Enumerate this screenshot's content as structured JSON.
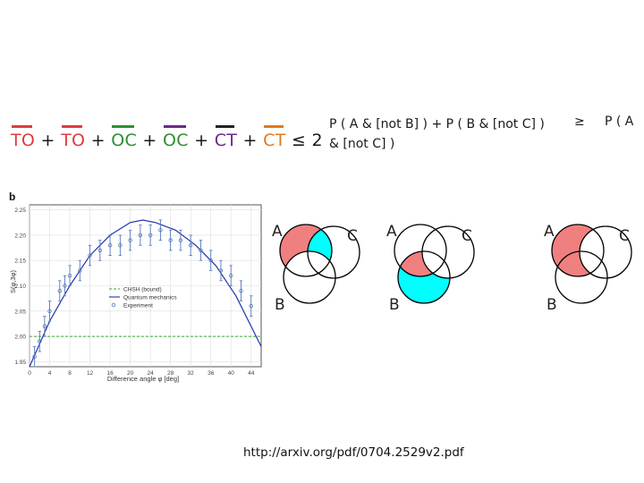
{
  "slide": {
    "inequality": {
      "terms": [
        {
          "text": "TO",
          "bar_color": "#e03c3c",
          "color": "#e03c3c"
        },
        {
          "text": "TO",
          "bar_color": "#e03c3c",
          "color": "#e03c3c"
        },
        {
          "text": "OC",
          "bar_color": "#2f8f2f",
          "color": "#2f8f2f"
        },
        {
          "text": "OC",
          "bar_color": "#6a2a8a",
          "color": "#2f8f2f"
        },
        {
          "text": "CT",
          "bar_color": "#222222",
          "color": "#6a2a8a"
        },
        {
          "text": "CT",
          "bar_color": "#e07a1a",
          "color": "#e07a1a"
        }
      ],
      "plus": "+",
      "rhs": "≤ 2"
    },
    "probability_text": "P ( A & [not B] )  +  P ( B & [not C] )  & [not C] )",
    "probability_line1": "P ( A & [not B] )  +  P ( B & [not C] )",
    "probability_line2": "& [not C] )",
    "geq": "≥",
    "rhs_prob": "P ( A",
    "url": "http://arxiv.org/pdf/0704.2529v2.pdf",
    "venn_labels": {
      "a": "A",
      "b": "B",
      "c": "C"
    },
    "colors": {
      "red_region": "#f08080",
      "cyan_region": "#00ffff"
    }
  },
  "chart_data": {
    "type": "line",
    "panel_label": "b",
    "xlabel": "Difference angle φ [deg]",
    "ylabel": "S(φ,3φ)",
    "xticks": [
      0,
      4,
      8,
      12,
      16,
      20,
      24,
      28,
      32,
      36,
      40,
      44
    ],
    "yticks": [
      1.95,
      2.0,
      2.05,
      2.1,
      2.15,
      2.2,
      2.25
    ],
    "xlim": [
      0,
      46
    ],
    "ylim": [
      1.94,
      2.26
    ],
    "legend": {
      "placement": "bottom-center",
      "entries": [
        "CHSH (bound)",
        "Quantum mechanics",
        "Experiment"
      ]
    },
    "series": [
      {
        "name": "CHSH (bound)",
        "style": "dashed",
        "color": "#33aa33",
        "x": [
          0,
          46
        ],
        "y": [
          2.0,
          2.0
        ]
      },
      {
        "name": "Quantum mechanics",
        "style": "solid",
        "color": "#2233aa",
        "x": [
          0,
          4,
          8,
          12,
          16,
          20,
          22.5,
          25,
          29,
          33,
          37,
          41,
          46
        ],
        "y": [
          1.94,
          2.03,
          2.1,
          2.16,
          2.2,
          2.225,
          2.23,
          2.225,
          2.21,
          2.18,
          2.14,
          2.08,
          1.98
        ]
      },
      {
        "name": "Experiment",
        "style": "points",
        "color": "#5577bb",
        "x": [
          1,
          2,
          3,
          4,
          6,
          7,
          8,
          10,
          12,
          14,
          16,
          18,
          20,
          22,
          24,
          26,
          28,
          30,
          32,
          34,
          36,
          38,
          40,
          42,
          44
        ],
        "y": [
          1.96,
          1.99,
          2.02,
          2.05,
          2.09,
          2.1,
          2.12,
          2.13,
          2.16,
          2.17,
          2.18,
          2.18,
          2.19,
          2.2,
          2.2,
          2.21,
          2.19,
          2.19,
          2.18,
          2.17,
          2.15,
          2.13,
          2.12,
          2.09,
          2.06
        ],
        "err": [
          0.02,
          0.02,
          0.02,
          0.02,
          0.02,
          0.02,
          0.02,
          0.02,
          0.02,
          0.02,
          0.02,
          0.02,
          0.02,
          0.02,
          0.02,
          0.02,
          0.02,
          0.02,
          0.02,
          0.02,
          0.02,
          0.02,
          0.02,
          0.02,
          0.02
        ]
      }
    ]
  }
}
